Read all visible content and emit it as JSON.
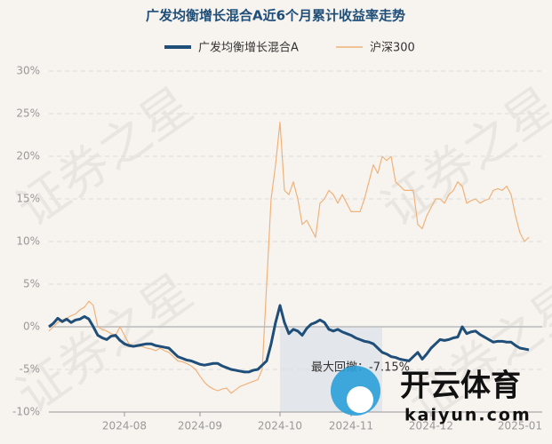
{
  "chart_data": {
    "type": "line",
    "title": "广发均衡增长混合A近6个月累计收益率走势",
    "categories": [
      null,
      null,
      null,
      null,
      null,
      null,
      null,
      null,
      null,
      null,
      null,
      null,
      null,
      null,
      null,
      null,
      null,
      "2024-08",
      null,
      null,
      null,
      null,
      null,
      null,
      null,
      null,
      null,
      null,
      null,
      null,
      null,
      null,
      null,
      null,
      "2024-09",
      null,
      null,
      null,
      null,
      null,
      null,
      null,
      null,
      null,
      null,
      null,
      null,
      null,
      null,
      null,
      null,
      null,
      "2024-10",
      null,
      null,
      null,
      null,
      null,
      null,
      null,
      null,
      null,
      null,
      null,
      null,
      null,
      null,
      null,
      "2024-11",
      null,
      null,
      null,
      null,
      null,
      null,
      null,
      null,
      null,
      null,
      null,
      null,
      null,
      null,
      null,
      null,
      null,
      "2024-12",
      null,
      null,
      null,
      null,
      null,
      null,
      null,
      null,
      null,
      null,
      null,
      null,
      null,
      null,
      null,
      null,
      null,
      null,
      null,
      "2025-01",
      null,
      null
    ],
    "series": [
      {
        "name": "广发均衡增长混合A",
        "color": "#1f4e79",
        "values": [
          0,
          0.4,
          1,
          0.6,
          0.9,
          0.5,
          0.8,
          0.9,
          1.2,
          0.9,
          0,
          -1,
          -1.3,
          -1.5,
          -1.1,
          -1,
          -1.6,
          -2,
          -2.2,
          -2.3,
          -2.2,
          -2.1,
          -2,
          -2,
          -2.2,
          -2.3,
          -2.4,
          -2.5,
          -3,
          -3.5,
          -3.7,
          -3.9,
          -4,
          -4.2,
          -4.4,
          -4.5,
          -4.4,
          -4.3,
          -4.3,
          -4.6,
          -4.8,
          -5,
          -5.1,
          -5.2,
          -5.3,
          -5.3,
          -5.1,
          -5,
          -4.5,
          -4,
          -2,
          0.5,
          2.5,
          0.5,
          -0.8,
          -0.3,
          -0.5,
          -1,
          -0.2,
          0.3,
          0.5,
          0.8,
          0.5,
          -0.3,
          -0.5,
          -0.3,
          -0.6,
          -0.8,
          -1,
          -1.3,
          -1.5,
          -1.7,
          -1.8,
          -2,
          -2.5,
          -3,
          -3.2,
          -3.5,
          -3.6,
          -3.8,
          -3.9,
          -4,
          -3.5,
          -3,
          -3.8,
          -3.2,
          -2.5,
          -2,
          -1.5,
          -1.6,
          -1.5,
          -1.3,
          -1.2,
          0,
          -0.8,
          -0.6,
          -0.5,
          -0.9,
          -1.2,
          -1.5,
          -1.8,
          -1.7,
          -1.7,
          -1.8,
          -1.8,
          -2.2,
          -2.5,
          -2.6,
          -2.7
        ]
      },
      {
        "name": "沪深300",
        "color": "#f0b27a",
        "values": [
          -0.5,
          0,
          0.5,
          0.8,
          1,
          1.3,
          1.5,
          2,
          2.3,
          3,
          2.5,
          0,
          -0.3,
          -0.5,
          -0.8,
          -1,
          0,
          -1,
          -2,
          -2.2,
          -2.3,
          -2.3,
          -2.5,
          -2.6,
          -2.8,
          -2.5,
          -2.8,
          -3,
          -3.5,
          -4,
          -4.1,
          -4.3,
          -4.6,
          -5,
          -5.8,
          -6.5,
          -7,
          -7.3,
          -7.5,
          -7.3,
          -7.2,
          -7.8,
          -7.4,
          -7,
          -6.8,
          -6.6,
          -6.4,
          -6.2,
          -5,
          5,
          15,
          19,
          24,
          16,
          15.5,
          17,
          15,
          12,
          12.5,
          11.5,
          10.5,
          14.5,
          15,
          16,
          15.5,
          14.5,
          15.5,
          14.5,
          13.5,
          13.5,
          13.5,
          15,
          17,
          19,
          18,
          20,
          19.5,
          20,
          17,
          16.5,
          16,
          16,
          16,
          12,
          11.5,
          13,
          14,
          15,
          15,
          14.5,
          15.5,
          16,
          17,
          16.5,
          14.5,
          14.8,
          15,
          14.5,
          14.8,
          15,
          16,
          16.2,
          16,
          16.5,
          15.5,
          13,
          11,
          10,
          10.5
        ]
      }
    ],
    "ylim": [
      -10,
      30
    ],
    "yticks": [
      {
        "value": -10,
        "label": "-10%"
      },
      {
        "value": -5,
        "label": "-5%"
      },
      {
        "value": 0,
        "label": "0%"
      },
      {
        "value": 5,
        "label": "5%"
      },
      {
        "value": 10,
        "label": "10%"
      },
      {
        "value": 15,
        "label": "15%"
      },
      {
        "value": 20,
        "label": "20%"
      },
      {
        "value": 25,
        "label": "25%"
      },
      {
        "value": 30,
        "label": "30%"
      }
    ],
    "grid": true,
    "legend": "top",
    "annotation": "最大回撤：-7.15%",
    "watermark": "证券之星",
    "logo": {
      "name": "开云体育",
      "url": "kaiyun.com"
    }
  }
}
